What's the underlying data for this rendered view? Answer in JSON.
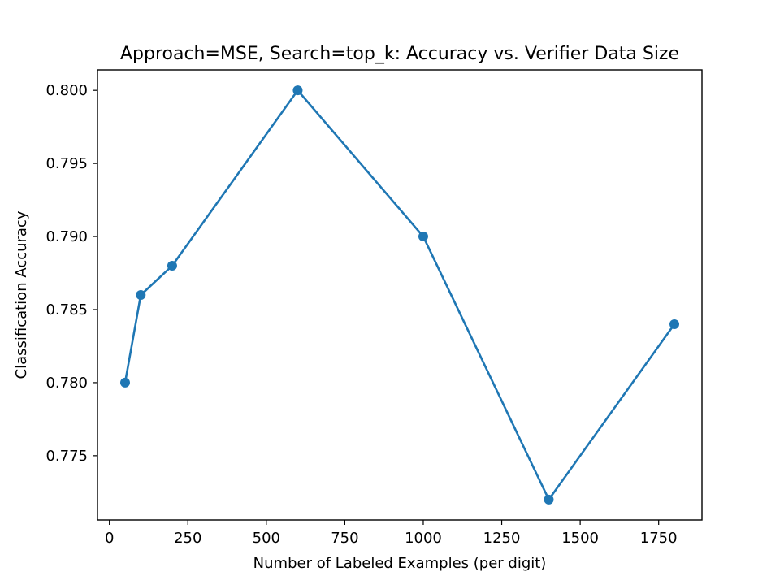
{
  "chart_data": {
    "type": "line",
    "title": "Approach=MSE, Search=top_k: Accuracy vs. Verifier Data Size",
    "xlabel": "Number of Labeled Examples (per digit)",
    "ylabel": "Classification Accuracy",
    "x": [
      50,
      100,
      200,
      600,
      1000,
      1400,
      1800
    ],
    "series": [
      {
        "values": [
          0.78,
          0.786,
          0.788,
          0.8,
          0.79,
          0.772,
          0.784
        ],
        "color": "#1f77b4",
        "marker": "circle"
      }
    ],
    "xlim": [
      -38,
      1888
    ],
    "ylim": [
      0.7706,
      0.8014
    ],
    "xticks": [
      0,
      250,
      500,
      750,
      1000,
      1250,
      1500,
      1750
    ],
    "xtick_labels": [
      "0",
      "250",
      "500",
      "750",
      "1000",
      "1250",
      "1500",
      "1750"
    ],
    "yticks": [
      0.775,
      0.78,
      0.785,
      0.79,
      0.795,
      0.8
    ],
    "ytick_labels": [
      "0.775",
      "0.780",
      "0.785",
      "0.790",
      "0.795",
      "0.800"
    ],
    "grid": false,
    "legend": "none"
  }
}
